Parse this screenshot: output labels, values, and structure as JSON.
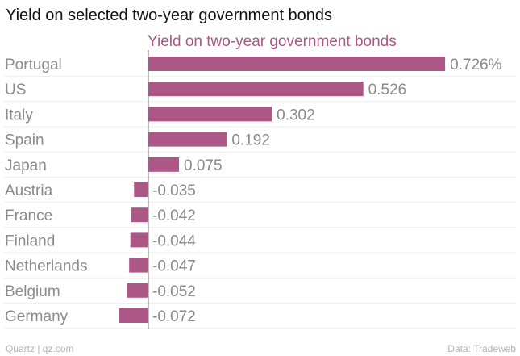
{
  "header": {
    "title": "Yield on selected two-year government bonds"
  },
  "footer": {
    "credit": "Quartz | qz.com",
    "source": "Data: Tradeweb"
  },
  "colors": {
    "bar": "#ad5787",
    "series_title": "#ad5787",
    "axis": "#777777",
    "grid": "#eeeeee",
    "label": "#8a8a8a"
  },
  "chart_data": {
    "type": "bar",
    "orientation": "horizontal",
    "title": "Yield on selected two-year government bonds",
    "categories": [
      "Portugal",
      "US",
      "Italy",
      "Spain",
      "Japan",
      "Austria",
      "France",
      "Finland",
      "Netherlands",
      "Belgium",
      "Germany"
    ],
    "series": [
      {
        "name": "Yield on two-year government bonds",
        "values": [
          0.726,
          0.526,
          0.302,
          0.192,
          0.075,
          -0.035,
          -0.042,
          -0.044,
          -0.047,
          -0.052,
          -0.072
        ]
      }
    ],
    "value_labels": [
      "0.726%",
      "0.526",
      "0.302",
      "0.192",
      "0.075",
      "-0.035",
      "-0.042",
      "-0.044",
      "-0.047",
      "-0.052",
      "-0.072"
    ],
    "xlim": [
      -0.072,
      0.726
    ],
    "grid": true,
    "legend": "none"
  }
}
